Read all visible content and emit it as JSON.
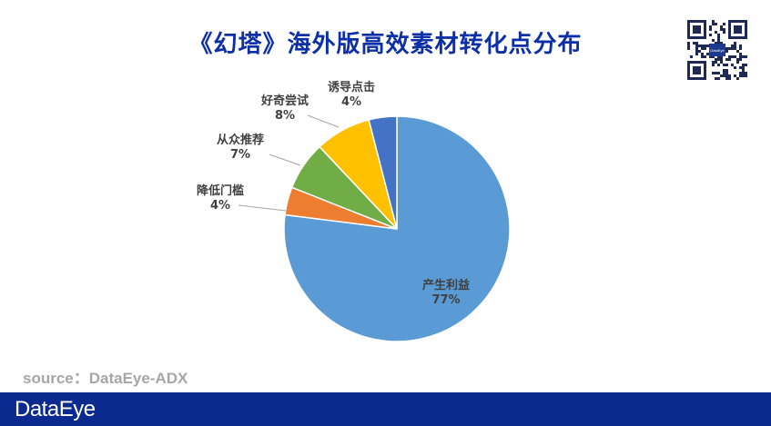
{
  "title": "《幻塔》海外版高效素材转化点分布",
  "source": "source：DataEye-ADX",
  "footer": {
    "logo": "DataEye"
  },
  "qr": {
    "center_text": "DataEye"
  },
  "chart_data": {
    "type": "pie",
    "title": "《幻塔》海外版高效素材转化点分布",
    "unit": "%",
    "start_angle_deg": 0,
    "direction": "clockwise",
    "slices": [
      {
        "label": "产生利益",
        "value": 77,
        "display": "77%",
        "color": "#5b9bd5"
      },
      {
        "label": "降低门槛",
        "value": 4,
        "display": "4%",
        "color": "#ed7d31"
      },
      {
        "label": "从众推荐",
        "value": 7,
        "display": "7%",
        "color": "#70ad47"
      },
      {
        "label": "好奇尝试",
        "value": 8,
        "display": "8%",
        "color": "#ffc000"
      },
      {
        "label": "诱导点击",
        "value": 4,
        "display": "4%",
        "color": "#4472c4"
      }
    ]
  }
}
